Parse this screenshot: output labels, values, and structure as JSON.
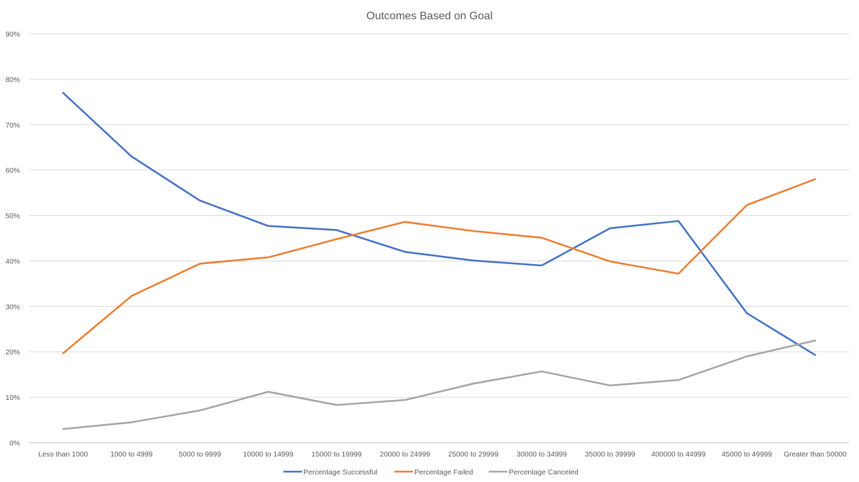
{
  "chart_data": {
    "type": "line",
    "title": "Outcomes Based on Goal",
    "xlabel": "",
    "ylabel": "",
    "ylim": [
      0,
      0.9
    ],
    "y_ticks": [
      "0%",
      "10%",
      "20%",
      "30%",
      "40%",
      "50%",
      "60%",
      "70%",
      "80%",
      "90%"
    ],
    "grid": true,
    "legend_position": "bottom",
    "categories": [
      "Less than 1000",
      "1000 to 4999",
      "5000 to 9999",
      "10000 to 14999",
      "15000 to 19999",
      "20000 to 24999",
      "25000 to 29999",
      "30000 to 34999",
      "35000 to 39999",
      "400000 to 44999",
      "45000 to 49999",
      "Greater than 50000"
    ],
    "series": [
      {
        "name": "Percentage Successful",
        "color": "#4472c4",
        "values": [
          0.77,
          0.63,
          0.533,
          0.477,
          0.468,
          0.42,
          0.401,
          0.39,
          0.472,
          0.488,
          0.285,
          0.193
        ]
      },
      {
        "name": "Percentage Failed",
        "color": "#ed7d31",
        "values": [
          0.197,
          0.323,
          0.394,
          0.408,
          0.448,
          0.486,
          0.466,
          0.451,
          0.399,
          0.372,
          0.523,
          0.58
        ]
      },
      {
        "name": "Percentage Canceled",
        "color": "#a5a5a5",
        "values": [
          0.03,
          0.045,
          0.071,
          0.112,
          0.083,
          0.094,
          0.13,
          0.157,
          0.126,
          0.138,
          0.19,
          0.225
        ]
      }
    ]
  }
}
